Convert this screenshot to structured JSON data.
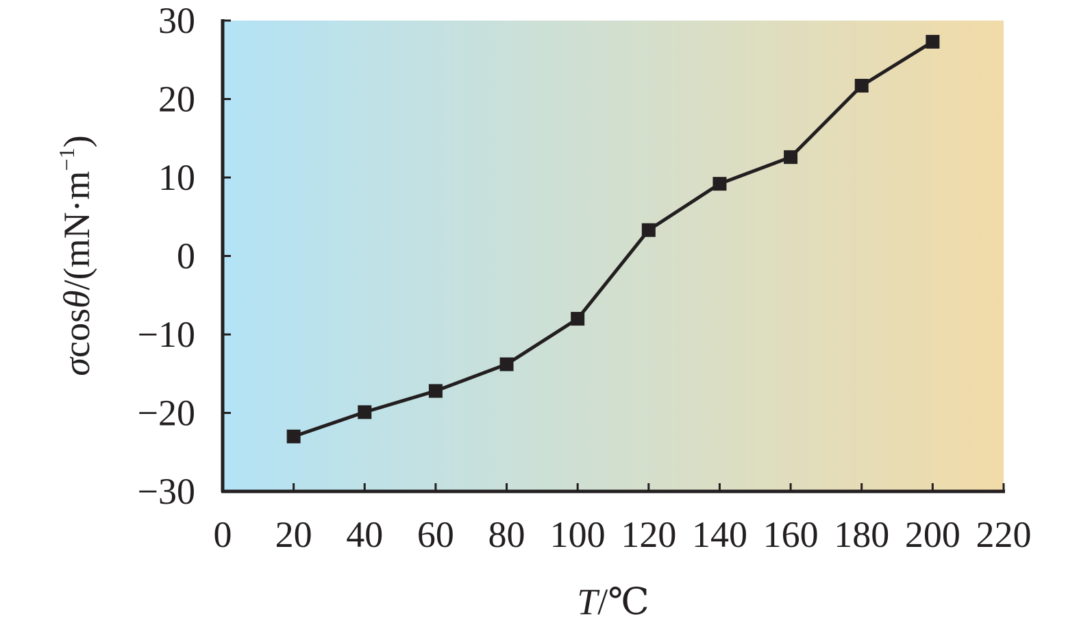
{
  "colors": {
    "background_left": "#b3e3f6",
    "background_right": "#f1dba8",
    "line": "#231f20",
    "marker": "#231f20",
    "axis": "#231f20",
    "text": "#231f20"
  },
  "chart_data": {
    "type": "line",
    "title": "",
    "xlabel": {
      "var": "T",
      "sep": "/",
      "unit": "℃"
    },
    "ylabel": {
      "var1": "σ",
      "mid": "cos",
      "var2": "θ",
      "rest": "/(mN·m",
      "sup": "−1",
      "close": ")"
    },
    "xlim": [
      0,
      220
    ],
    "ylim": [
      -30,
      30
    ],
    "x_ticks": [
      0,
      20,
      40,
      60,
      80,
      100,
      120,
      140,
      160,
      180,
      200,
      220
    ],
    "x_tick_labels": [
      "0",
      "20",
      "40",
      "60",
      "80",
      "100",
      "120",
      "140",
      "160",
      "180",
      "200",
      "220"
    ],
    "y_ticks": [
      30,
      20,
      10,
      0,
      -10,
      -20,
      -30
    ],
    "y_tick_labels": [
      "30",
      "20",
      "10",
      "0",
      "−10",
      "−20",
      "−30"
    ],
    "grid": false,
    "legend": "none",
    "marker": "square",
    "series": [
      {
        "x": [
          20,
          40,
          60,
          80,
          100,
          120,
          140,
          160,
          180,
          200
        ],
        "y": [
          -23.0,
          -19.9,
          -17.2,
          -13.8,
          -8.0,
          3.3,
          9.2,
          12.6,
          21.7,
          27.3
        ]
      }
    ]
  }
}
